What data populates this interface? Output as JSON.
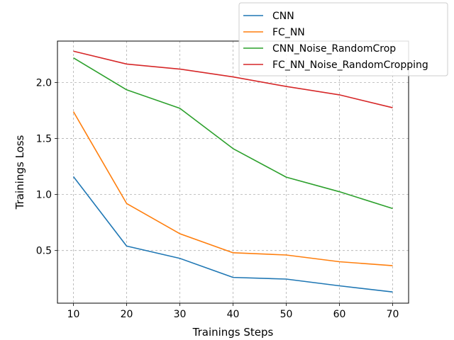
{
  "chart_data": {
    "type": "line",
    "title": "",
    "xlabel": "Trainings Steps",
    "ylabel": "Trainings Loss",
    "x": [
      10,
      20,
      30,
      40,
      50,
      60,
      70
    ],
    "xticks": [
      10,
      20,
      30,
      40,
      50,
      60,
      70
    ],
    "yticks": [
      0.5,
      1.0,
      1.5,
      2.0
    ],
    "ytick_labels": [
      "0.5",
      "1.0",
      "1.5",
      "2.0"
    ],
    "xlim": [
      7,
      73
    ],
    "ylim": [
      0.03,
      2.37
    ],
    "grid": true,
    "legend_position": "top-right",
    "series": [
      {
        "name": "CNN",
        "color": "#1f77b4",
        "values": [
          1.16,
          0.54,
          0.43,
          0.26,
          0.245,
          0.185,
          0.13
        ]
      },
      {
        "name": "FC_NN",
        "color": "#ff7f0e",
        "values": [
          1.74,
          0.92,
          0.65,
          0.48,
          0.46,
          0.4,
          0.365
        ]
      },
      {
        "name": "CNN_Noise_RandomCrop",
        "color": "#2ca02c",
        "values": [
          2.22,
          1.935,
          1.77,
          1.41,
          1.155,
          1.025,
          0.875
        ]
      },
      {
        "name": "FC_NN_Noise_RandomCropping",
        "color": "#d62728",
        "values": [
          2.28,
          2.165,
          2.12,
          2.05,
          1.965,
          1.89,
          1.775
        ]
      }
    ]
  }
}
